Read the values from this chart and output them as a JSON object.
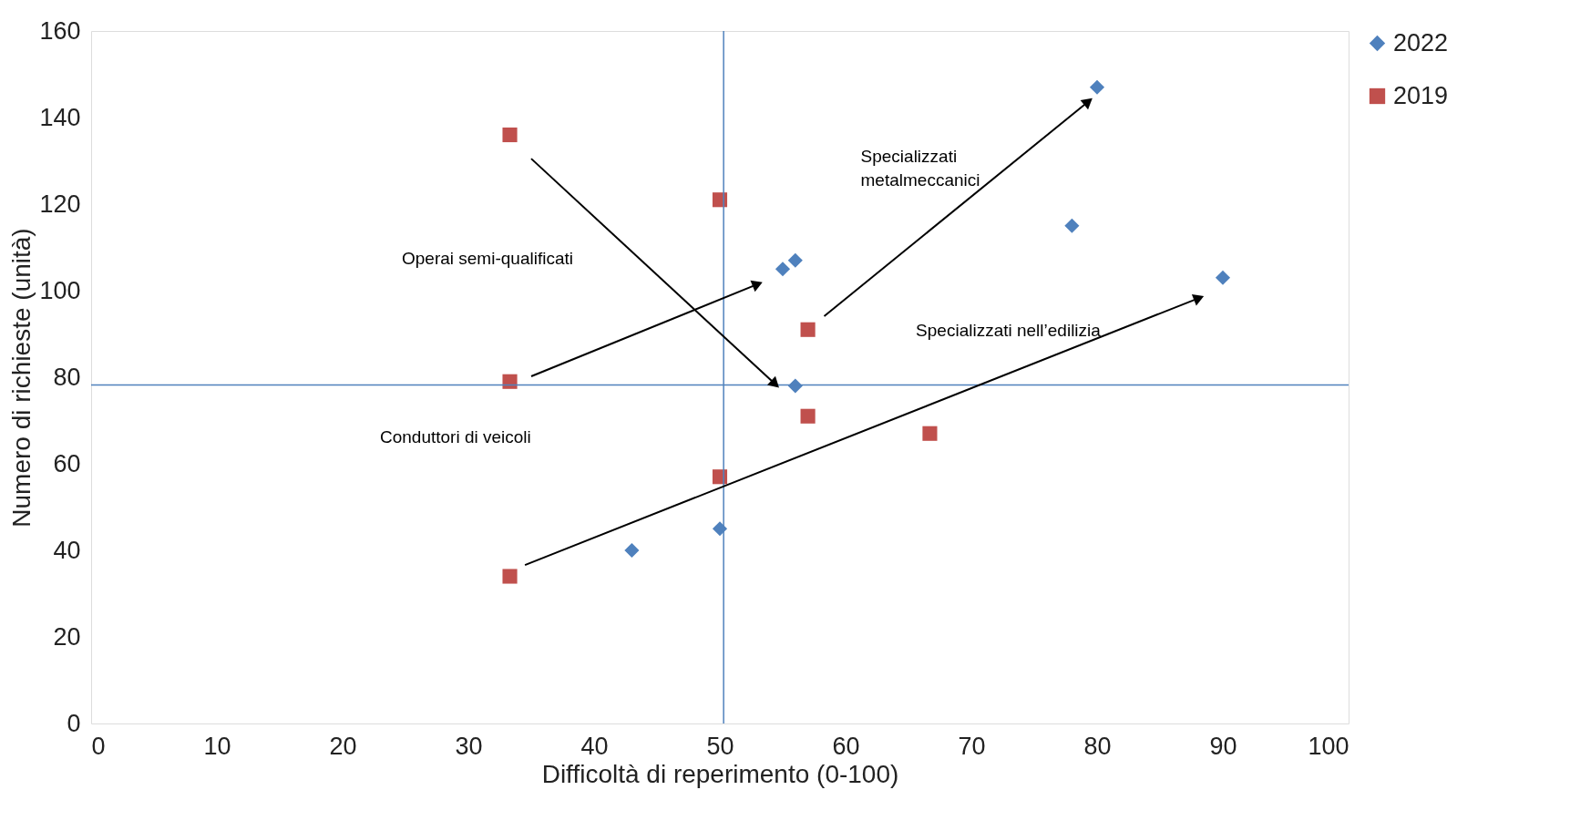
{
  "chart_data": {
    "type": "scatter",
    "xlabel": "Difficoltà di reperimento (0-100)",
    "ylabel": "Numero di richieste (unità)",
    "xlim": [
      0,
      100
    ],
    "xticks": [
      0,
      10,
      20,
      30,
      40,
      50,
      60,
      70,
      80,
      90,
      100
    ],
    "ylim": [
      0,
      160
    ],
    "yticks": [
      0,
      20,
      40,
      60,
      80,
      100,
      120,
      140,
      160
    ],
    "grid": false,
    "legend": "right",
    "series": [
      {
        "name": "2022",
        "type": "scatter",
        "marker": "diamond",
        "color": "#4f81bd",
        "x": [
          80,
          78,
          90,
          55,
          56,
          56,
          50,
          43
        ],
        "values": [
          147,
          115,
          103,
          105,
          107,
          78,
          45,
          40
        ]
      },
      {
        "name": "2019",
        "type": "scatter",
        "marker": "square",
        "color": "#c0504d",
        "x": [
          33.3,
          50,
          57,
          33.3,
          57,
          66.7,
          50,
          33.3
        ],
        "values": [
          136,
          121,
          91,
          79,
          71,
          67,
          57,
          34
        ]
      },
      {
        "type": "line",
        "marker": "triangle",
        "color": "#000000",
        "x": [
          35.0,
          54.4
        ],
        "values": [
          130.5,
          78.4
        ]
      },
      {
        "type": "line",
        "marker": "triangle",
        "color": "#000000",
        "x": [
          35.0,
          53.0
        ],
        "values": [
          80.2,
          101.5
        ]
      },
      {
        "type": "line",
        "marker": "triangle",
        "color": "#000000",
        "x": [
          58.3,
          79.3
        ],
        "values": [
          94.1,
          143.7
        ]
      },
      {
        "type": "line",
        "marker": "triangle",
        "color": "#000000",
        "x": [
          34.5,
          88.1
        ],
        "values": [
          36.6,
          98.3
        ]
      }
    ],
    "ref_lines": [
      {
        "axis": "x",
        "value": 50.3,
        "color": "#4f81bd"
      },
      {
        "axis": "y",
        "value": 78.2,
        "color": "#4f81bd"
      }
    ],
    "annotations": [
      "Conduttori di veicoli",
      "Operai semi-qualificati",
      "Specializzati\nmetalmeccanici",
      "Specializzati nell’edilizia"
    ]
  }
}
